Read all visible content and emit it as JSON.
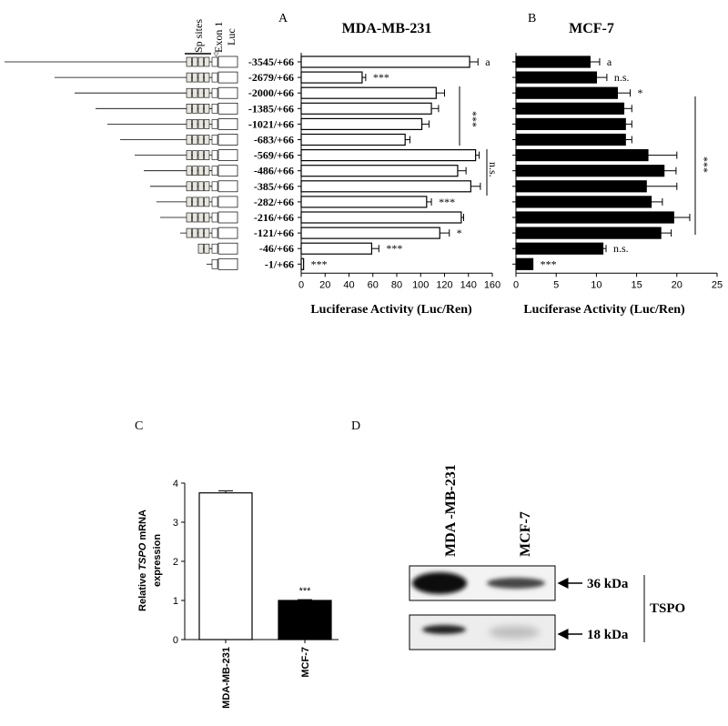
{
  "panel_letters": {
    "a": "A",
    "b": "B",
    "c": "C",
    "d": "D"
  },
  "construct_header": {
    "sp_sites": "Sp sites",
    "exon1": "Exon 1",
    "luc": "Luc"
  },
  "construct_labels": [
    "-3545/+66",
    "-2679/+66",
    "-2000/+66",
    "-1385/+66",
    "-1021/+66",
    "-683/+66",
    "-569/+66",
    "-486/+66",
    "-385/+66",
    "-282/+66",
    "-216/+66",
    "-121/+66",
    "-46/+66",
    "-1/+66"
  ],
  "bracket_labels": {
    "a_mid": "***",
    "a_right": "n.s.",
    "b_right": "***"
  },
  "chart_data": [
    {
      "id": "A",
      "type": "bar",
      "orientation": "horizontal",
      "title": "MDA-MB-231",
      "xlabel": "Luciferase Activity (Luc/Ren)",
      "ylabel": "",
      "xlim": [
        0,
        160
      ],
      "ticks": [
        0,
        20,
        40,
        60,
        80,
        100,
        120,
        140,
        160
      ],
      "fill": "#ffffff",
      "values": [
        141,
        51,
        113,
        109,
        101,
        87,
        146,
        131,
        142,
        105,
        134,
        116,
        59,
        2
      ],
      "errors": [
        7,
        3,
        7,
        6,
        6,
        4,
        3,
        7,
        8,
        4,
        2,
        8,
        6,
        0
      ],
      "annotations": [
        "a",
        "***",
        "",
        "",
        "",
        "",
        "",
        "",
        "",
        "***",
        "",
        "*",
        "***",
        "***"
      ]
    },
    {
      "id": "B",
      "type": "bar",
      "orientation": "horizontal",
      "title": "MCF-7",
      "xlabel": "Luciferase Activity (Luc/Ren)",
      "ylabel": "",
      "xlim": [
        0,
        25
      ],
      "ticks": [
        0,
        5,
        10,
        15,
        20,
        25
      ],
      "fill": "#000000",
      "values": [
        9.2,
        10,
        12.6,
        13.4,
        13.6,
        13.6,
        16.4,
        18.4,
        16.2,
        16.8,
        19.6,
        18,
        10.8,
        2.1
      ],
      "errors": [
        1.2,
        1.3,
        1.6,
        1,
        0.8,
        0.8,
        3.6,
        1.5,
        3.8,
        1.4,
        2,
        1.3,
        0.4,
        0
      ],
      "annotations": [
        "a",
        "n.s.",
        "*",
        "",
        "",
        "",
        "",
        "",
        "",
        "",
        "",
        "",
        "n.s.",
        "***"
      ]
    },
    {
      "id": "C",
      "type": "bar",
      "orientation": "vertical",
      "title": "",
      "ylabel_line1_pre": "Relative ",
      "ylabel_line1_italic": "TSPO",
      "ylabel_line1_post": " mRNA",
      "ylabel_line2": "expression",
      "ylim": [
        0,
        4
      ],
      "ticks": [
        0,
        1,
        2,
        3,
        4
      ],
      "categories": [
        "MDA-MB-231",
        "MCF-7"
      ],
      "values": [
        3.75,
        1.0
      ],
      "errors": [
        0.05,
        0.02
      ],
      "fills": [
        "#ffffff",
        "#000000"
      ],
      "annotations": [
        "",
        "***"
      ]
    }
  ],
  "western_blot": {
    "lanes": [
      "MDA -MB-231",
      "MCF-7"
    ],
    "bands": [
      "36 kDa",
      "18 kDa"
    ],
    "protein": "TSPO"
  }
}
